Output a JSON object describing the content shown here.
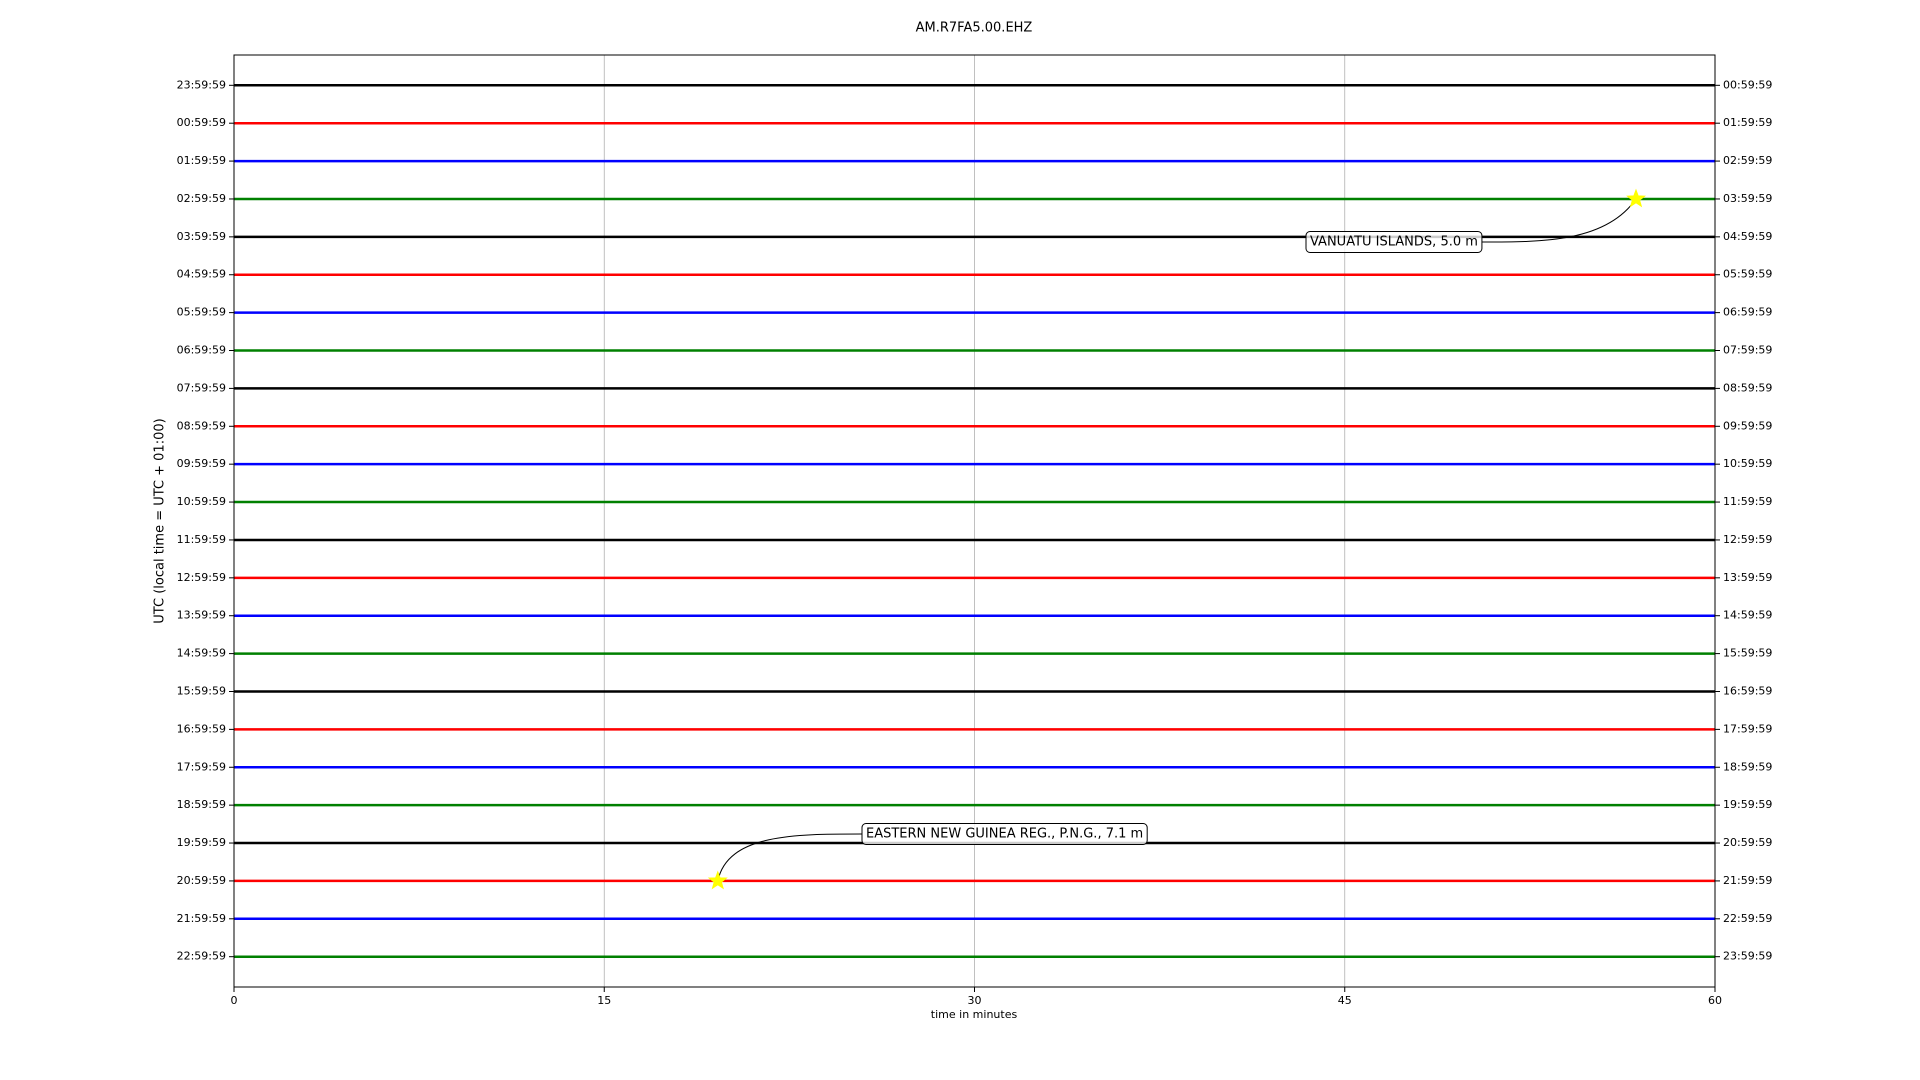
{
  "chart_data": {
    "type": "dayplot",
    "title": "AM.R7FA5.00.EHZ",
    "x_label": "time in minutes",
    "y_label": "UTC (local time = UTC + 01:00)",
    "xlim": [
      0,
      60
    ],
    "xticks": [
      0,
      15,
      30,
      45,
      60
    ],
    "grid": true,
    "ylim": [
      -0.8,
      23.8
    ],
    "yticks": [
      {
        "value": 0,
        "label": "23:59:59"
      },
      {
        "value": 1,
        "label": "00:59:59"
      },
      {
        "value": 2,
        "label": "01:59:59"
      },
      {
        "value": 3,
        "label": "02:59:59"
      },
      {
        "value": 4,
        "label": "03:59:59"
      },
      {
        "value": 5,
        "label": "04:59:59"
      },
      {
        "value": 6,
        "label": "05:59:59"
      },
      {
        "value": 7,
        "label": "06:59:59"
      },
      {
        "value": 8,
        "label": "07:59:59"
      },
      {
        "value": 9,
        "label": "08:59:59"
      },
      {
        "value": 10,
        "label": "09:59:59"
      },
      {
        "value": 11,
        "label": "10:59:59"
      },
      {
        "value": 12,
        "label": "11:59:59"
      },
      {
        "value": 13,
        "label": "12:59:59"
      },
      {
        "value": 14,
        "label": "13:59:59"
      },
      {
        "value": 15,
        "label": "14:59:59"
      },
      {
        "value": 16,
        "label": "15:59:59"
      },
      {
        "value": 17,
        "label": "16:59:59"
      },
      {
        "value": 18,
        "label": "17:59:59"
      },
      {
        "value": 19,
        "label": "18:59:59"
      },
      {
        "value": 20,
        "label": "19:59:59"
      },
      {
        "value": 21,
        "label": "20:59:59"
      },
      {
        "value": 22,
        "label": "21:59:59"
      },
      {
        "value": 23,
        "label": "22:59:59"
      }
    ],
    "y2ticks": [
      {
        "value": 0,
        "label": "00:59:59"
      },
      {
        "value": 1,
        "label": "01:59:59"
      },
      {
        "value": 2,
        "label": "02:59:59"
      },
      {
        "value": 3,
        "label": "03:59:59"
      },
      {
        "value": 4,
        "label": "04:59:59"
      },
      {
        "value": 5,
        "label": "05:59:59"
      },
      {
        "value": 6,
        "label": "06:59:59"
      },
      {
        "value": 7,
        "label": "07:59:59"
      },
      {
        "value": 8,
        "label": "08:59:59"
      },
      {
        "value": 9,
        "label": "09:59:59"
      },
      {
        "value": 10,
        "label": "10:59:59"
      },
      {
        "value": 11,
        "label": "11:59:59"
      },
      {
        "value": 12,
        "label": "12:59:59"
      },
      {
        "value": 13,
        "label": "13:59:59"
      },
      {
        "value": 14,
        "label": "14:59:59"
      },
      {
        "value": 15,
        "label": "15:59:59"
      },
      {
        "value": 16,
        "label": "16:59:59"
      },
      {
        "value": 17,
        "label": "17:59:59"
      },
      {
        "value": 18,
        "label": "18:59:59"
      },
      {
        "value": 19,
        "label": "19:59:59"
      },
      {
        "value": 20,
        "label": "20:59:59"
      },
      {
        "value": 21,
        "label": "21:59:59"
      },
      {
        "value": 22,
        "label": "22:59:59"
      },
      {
        "value": 23,
        "label": "23:59:59"
      }
    ],
    "trace_colors": [
      "#000000",
      "#ff0000",
      "#0000ff",
      "#008000"
    ],
    "events": [
      {
        "label": "VANUATU ISLANDS, 5.0 m",
        "x": 56.8,
        "row": 3
      },
      {
        "label": "EASTERN NEW GUINEA REG., P.N.G., 7.1 m",
        "x": 19.6,
        "row": 21
      }
    ],
    "event_color": "#ffff00"
  }
}
